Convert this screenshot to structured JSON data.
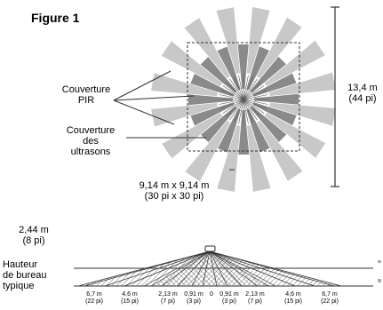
{
  "figure": {
    "title": "Figure 1"
  },
  "labels": {
    "pir_line1": "Couverture",
    "pir_line2": "PIR",
    "us_line1": "Couverture",
    "us_line2": "des",
    "us_line3": "ultrasons",
    "area_line1": "9,14 m x 9,14 m",
    "area_line2": "(30 pi x 30 pi)",
    "diameter_line1": "13,4 m",
    "diameter_line2": "(44 pi)",
    "height_line1": "2,44 m",
    "height_line2": "(8 pi)",
    "desk_line1": "Hauteur",
    "desk_line2": "de bureau",
    "desk_line3": "typique"
  },
  "distance_ticks": [
    {
      "m": "6,7 m",
      "ft": "(22 pi)"
    },
    {
      "m": "4,6 m",
      "ft": "(15 pi)"
    },
    {
      "m": "2,13 m",
      "ft": "(7 pi)"
    },
    {
      "m": "0,91 m",
      "ft": "(3 pi)"
    },
    {
      "m": "0",
      "ft": ""
    },
    {
      "m": "0,91 m",
      "ft": "(3 pi)"
    },
    {
      "m": "2,13 m",
      "ft": "(7 pi)"
    },
    {
      "m": "4,6 m",
      "ft": "(15 pi)"
    },
    {
      "m": "6,7 m",
      "ft": "(22 pi)"
    }
  ],
  "colors": {
    "pir_beam": "#c8c8c8",
    "ultrasonic_beam": "#8a8a8a",
    "line": "#333333"
  }
}
